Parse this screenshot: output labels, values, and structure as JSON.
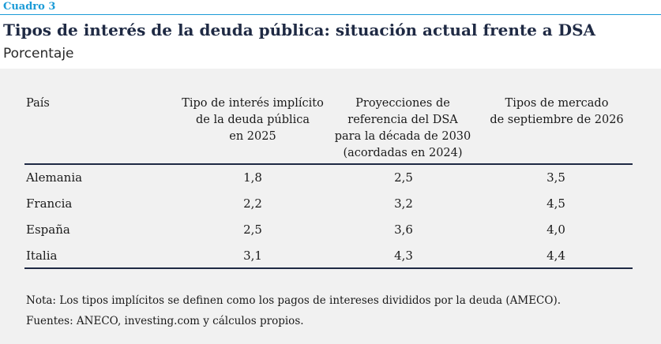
{
  "box_label": "Cuadro 3",
  "title": "Tipos de interés de la deuda pública: situación actual frente a DSA",
  "subtitle": "Porcentaje",
  "table": {
    "headers": [
      "País",
      "Tipo de interés implícito\nde la deuda pública\nen 2025",
      "Proyecciones de\nreferencia del DSA\npara la década de 2030\n(acordadas en 2024)",
      "Tipos de mercado\nde septiembre de 2026"
    ],
    "rows": [
      [
        "Alemania",
        "1,8",
        "2,5",
        "3,5"
      ],
      [
        "Francia",
        "2,2",
        "3,2",
        "4,5"
      ],
      [
        "España",
        "2,5",
        "3,6",
        "4,0"
      ],
      [
        "Italia",
        "3,1",
        "4,3",
        "4,4"
      ]
    ]
  },
  "notes": {
    "note": "Nota: Los tipos implícitos se definen como los pagos de intereses divididos por la deuda (AMECO).",
    "sources": "Fuentes: ANECO, investing.com y cálculos propios."
  },
  "colors": {
    "accent": "#1b9bd7",
    "title": "#1f2a44",
    "panel_bg": "#f1f1f1"
  }
}
